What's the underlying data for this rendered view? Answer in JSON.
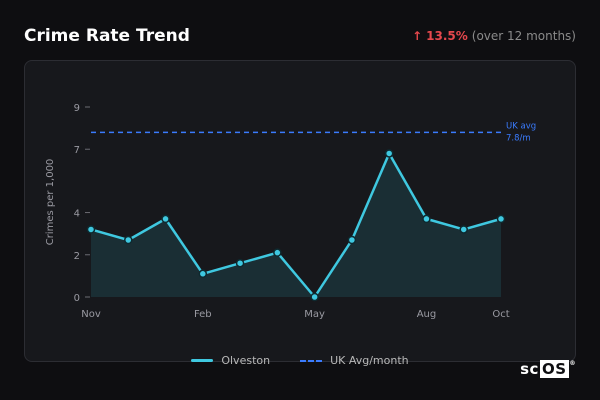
{
  "header": {
    "title": "Crime Rate Trend",
    "change_arrow": "↑",
    "change_pct": "13.5%",
    "change_period": "(over 12 months)"
  },
  "brand": {
    "text_a": "sc",
    "text_b": "OS",
    "mark": "®"
  },
  "colors": {
    "series": "#3fc8e0",
    "avg": "#3a7bfd",
    "up": "#e5484d"
  },
  "legend": {
    "series_label": "Olveston",
    "avg_label": "UK Avg/month"
  },
  "chart_data": {
    "type": "line",
    "ylabel": "Crimes per 1,000",
    "xlabel": "",
    "ylim": [
      0,
      9
    ],
    "yticks": [
      0,
      2,
      4,
      7,
      9
    ],
    "x_ticks": [
      "Nov",
      "Feb",
      "May",
      "Aug",
      "Oct"
    ],
    "series": [
      {
        "name": "Olveston",
        "values": [
          3.2,
          2.7,
          3.7,
          1.1,
          1.6,
          2.1,
          0.0,
          2.7,
          6.8,
          3.7,
          3.2,
          3.7
        ]
      }
    ],
    "reference_line": {
      "name": "UK Avg/month",
      "value": 7.8,
      "label_line1": "UK avg",
      "label_line2": "7.8/m"
    },
    "grid": false,
    "legend_position": "bottom"
  }
}
